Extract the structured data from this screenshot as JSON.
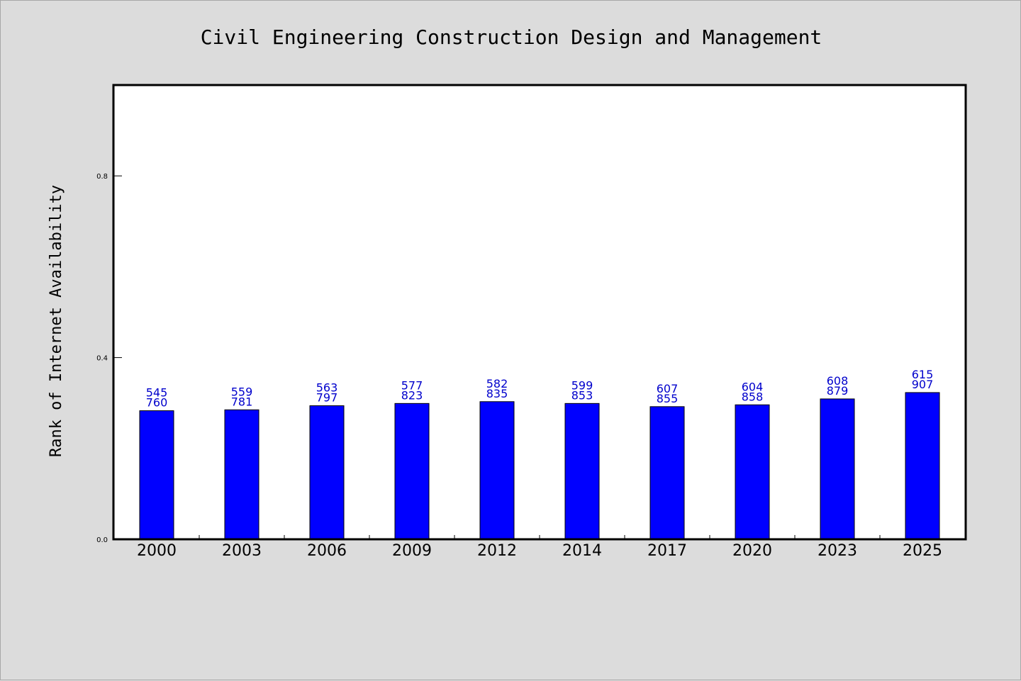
{
  "chart_data": {
    "type": "bar",
    "title": "Civil Engineering Construction Design and Management",
    "xlabel": "",
    "ylabel": "Rank of Internet Availability",
    "categories": [
      "2000",
      "2003",
      "2006",
      "2009",
      "2012",
      "2014",
      "2017",
      "2020",
      "2023",
      "2025"
    ],
    "values": [
      0.283,
      0.285,
      0.294,
      0.299,
      0.303,
      0.299,
      0.292,
      0.296,
      0.309,
      0.323
    ],
    "bar_labels_top": [
      "545",
      "559",
      "563",
      "577",
      "582",
      "599",
      "607",
      "604",
      "608",
      "615"
    ],
    "bar_labels_bottom": [
      "760",
      "781",
      "797",
      "823",
      "835",
      "853",
      "855",
      "858",
      "879",
      "907"
    ],
    "yticks": [
      "0.0",
      "0.4",
      "0.8"
    ],
    "ylim": [
      0,
      1
    ],
    "bar_color": "#0000ff",
    "label_color": "#0000cc",
    "plot_background": "#ffffff",
    "figure_background": "#dcdcdc",
    "grid": false,
    "legend": "none"
  }
}
